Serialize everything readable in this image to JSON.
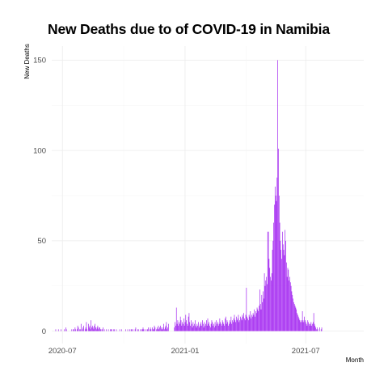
{
  "chart_data": {
    "type": "bar",
    "title": "New Deaths due to of COVID-19 in Namibia",
    "xlabel": "Month",
    "ylabel": "New Deaths",
    "start_date": "2020-06-15",
    "end_date": "2021-09-26",
    "ylim": [
      0,
      150
    ],
    "y_ticks": [
      0,
      50,
      100,
      150
    ],
    "x_ticks": [
      {
        "value": "2020-07-01",
        "label": "2020-07"
      },
      {
        "value": "2021-01-01",
        "label": "2021-01"
      },
      {
        "value": "2021-07-01",
        "label": "2021-07"
      }
    ],
    "grid": true,
    "bar_color": "#a020f0",
    "series": [
      {
        "segments": [
          {
            "start": "2020-06-15",
            "values": [
              0,
              0,
              0,
              0,
              0,
              0,
              1,
              0,
              0,
              0,
              1,
              0,
              0,
              0,
              1,
              0,
              0,
              0,
              0,
              1,
              0,
              2,
              1,
              0,
              0,
              0,
              0,
              0,
              0,
              0,
              1,
              0,
              1,
              1,
              0,
              2,
              1,
              0,
              1,
              3,
              2,
              0,
              1,
              1,
              4,
              0,
              1,
              2,
              3,
              0,
              1,
              2,
              5,
              1,
              0,
              4,
              2,
              3,
              1,
              6,
              2,
              3,
              2,
              1,
              3,
              4,
              2,
              1,
              2,
              3,
              1,
              2,
              2,
              1,
              1,
              0,
              1,
              2,
              0,
              1,
              0,
              0,
              1,
              0,
              0,
              1,
              0,
              0,
              1,
              1,
              1,
              0,
              0,
              1,
              1,
              0,
              0,
              1,
              0,
              0,
              0,
              0,
              1,
              0,
              0,
              1,
              0,
              0,
              0,
              0,
              0,
              1,
              0,
              0,
              1,
              0,
              0,
              1,
              0,
              1,
              1,
              0,
              1,
              0,
              0,
              1,
              2,
              0,
              0,
              1,
              1,
              0,
              0,
              1,
              0,
              1,
              1,
              2,
              1,
              0,
              1,
              0,
              0,
              1,
              1,
              2,
              0,
              1,
              2,
              1,
              0,
              2,
              1,
              1,
              3,
              2,
              0,
              1,
              2,
              1,
              3,
              1,
              2,
              3,
              2,
              1,
              1,
              2,
              4,
              1,
              2,
              3,
              5,
              1,
              2,
              4
            ]
          },
          {
            "start": "2020-12-16",
            "values": [
              2,
              5,
              3,
              13,
              4,
              6,
              3,
              5,
              4,
              8,
              6,
              3,
              5,
              4,
              7,
              3,
              5,
              9,
              6,
              4,
              3,
              8,
              10,
              5,
              3,
              6,
              4,
              2,
              5,
              3,
              4,
              6,
              3,
              2,
              4,
              3,
              5,
              2,
              3,
              4,
              5,
              3,
              6,
              4,
              2,
              5,
              3,
              4,
              6,
              3,
              7,
              4,
              5,
              3,
              2,
              4,
              6,
              5,
              3,
              4,
              2,
              5,
              3,
              6,
              4,
              5,
              3,
              4,
              7,
              5,
              4,
              3,
              6,
              5,
              4,
              3,
              7,
              8,
              4,
              6,
              5,
              3,
              4,
              6,
              5,
              8,
              4,
              6,
              5,
              7,
              9,
              6,
              5,
              8,
              6,
              7,
              9,
              5,
              6,
              8,
              7,
              6,
              9,
              8,
              10,
              7,
              6,
              9,
              24,
              8,
              7,
              6,
              9,
              8,
              11,
              7,
              9,
              8,
              10,
              9,
              12,
              8,
              11,
              10,
              13,
              12,
              11,
              14,
              23,
              15,
              12,
              20,
              16,
              22,
              18,
              32,
              25,
              28,
              30,
              26,
              55,
              55,
              40,
              35,
              30,
              28,
              32,
              45,
              50,
              60,
              70,
              80,
              75,
              72,
              85,
              150,
              101,
              75,
              60,
              50,
              45,
              40,
              55,
              48,
              45,
              42,
              56,
              50,
              38,
              30,
              35,
              34,
              28,
              30,
              27,
              25,
              22,
              20,
              18,
              16,
              15,
              14,
              13,
              12,
              10,
              9,
              8,
              7,
              6,
              5,
              6,
              5,
              11,
              6,
              5,
              8,
              6,
              5,
              4,
              3,
              6,
              5,
              4,
              3,
              4,
              5,
              3,
              4,
              5,
              10,
              4,
              3,
              2,
              1,
              2,
              1,
              0,
              0,
              2,
              0,
              1,
              2
            ]
          }
        ]
      }
    ]
  }
}
